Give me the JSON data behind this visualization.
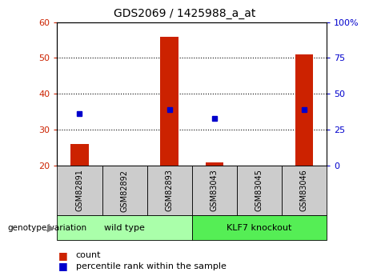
{
  "title": "GDS2069 / 1425988_a_at",
  "samples": [
    "GSM82891",
    "GSM82892",
    "GSM82893",
    "GSM83043",
    "GSM83045",
    "GSM83046"
  ],
  "count_values": [
    26,
    20,
    56,
    21,
    20,
    51
  ],
  "percentile_values": [
    36,
    null,
    39,
    33,
    null,
    39
  ],
  "ylim_left": [
    20,
    60
  ],
  "ylim_right": [
    0,
    100
  ],
  "yticks_left": [
    20,
    30,
    40,
    50,
    60
  ],
  "yticks_right": [
    0,
    25,
    50,
    75,
    100
  ],
  "bar_color": "#cc2200",
  "dot_color": "#0000cc",
  "bg_plot": "#ffffff",
  "bg_label": "#cccccc",
  "bg_group_wt": "#aaffaa",
  "bg_group_ko": "#55ee55",
  "group_labels": [
    "wild type",
    "KLF7 knockout"
  ],
  "group_split": 3,
  "legend_count": "count",
  "legend_pct": "percentile rank within the sample",
  "genotype_label": "genotype/variation",
  "bar_width": 0.4
}
